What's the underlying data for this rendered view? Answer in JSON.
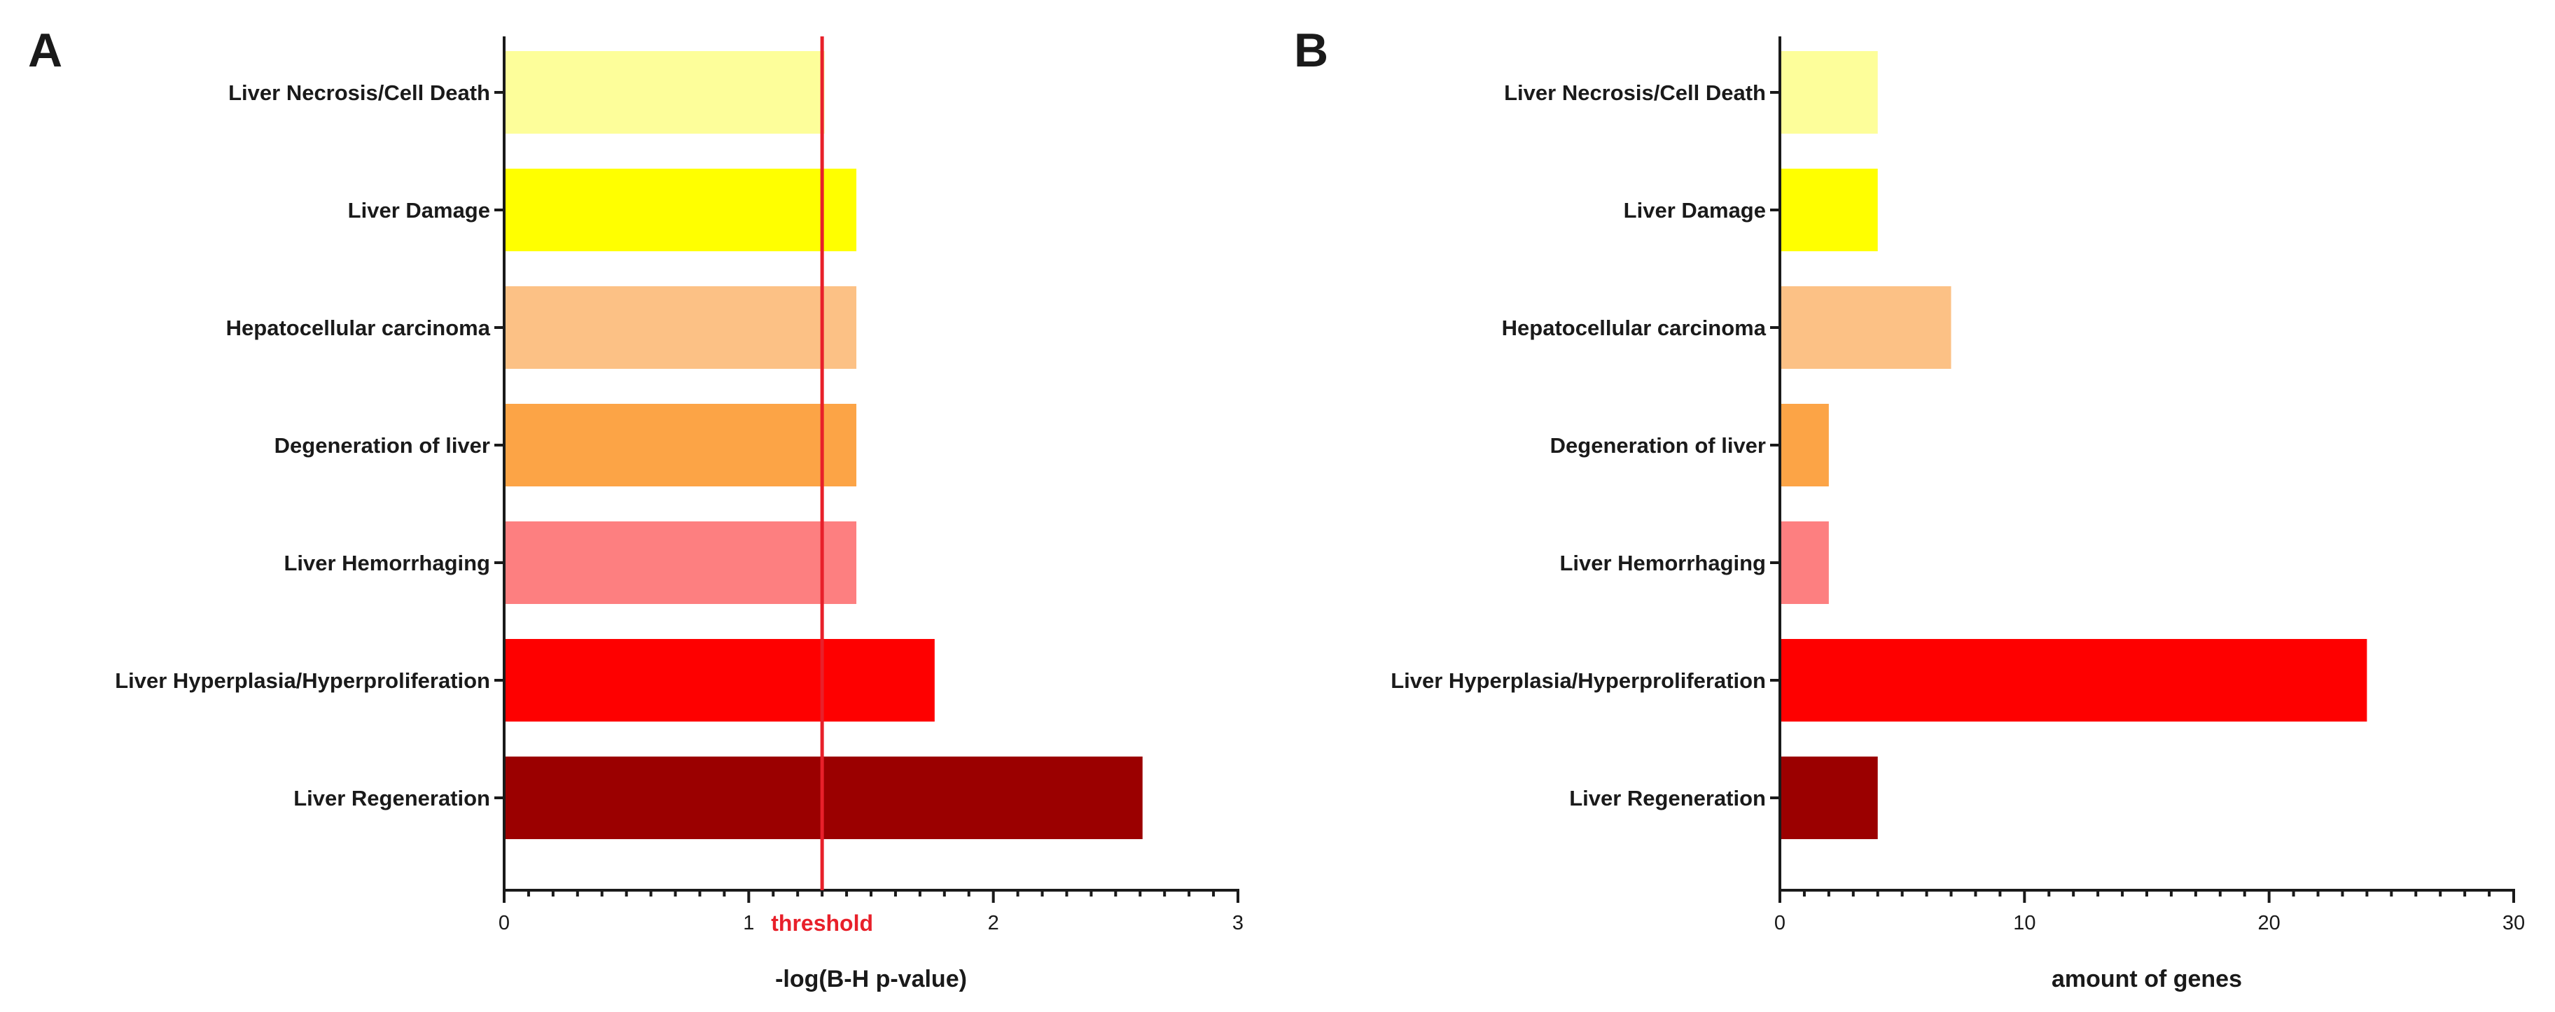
{
  "chart_data": [
    {
      "type": "bar",
      "orientation": "horizontal",
      "panel_label": "A",
      "categories": [
        "Liver Necrosis/Cell Death",
        "Liver Damage",
        "Hepatocellular carcinoma",
        "Degeneration of liver",
        "Liver Hemorrhaging",
        "Liver Hyperplasia/Hyperproliferation",
        "Liver Regeneration"
      ],
      "values": [
        1.31,
        1.44,
        1.44,
        1.44,
        1.44,
        1.76,
        2.61
      ],
      "colors": [
        "#fdfe9a",
        "#ffff00",
        "#fcc185",
        "#fca446",
        "#fd7f80",
        "#fe0000",
        "#9b0000"
      ],
      "xlabel": "-log(B-H p-value)",
      "xlim": [
        0,
        3
      ],
      "xticks": [
        0,
        1,
        2,
        3
      ],
      "xtick_labels": [
        "0",
        "1",
        "2",
        "3"
      ],
      "threshold": {
        "value": 1.3,
        "label": "threshold",
        "color": "#e8202a"
      }
    },
    {
      "type": "bar",
      "orientation": "horizontal",
      "panel_label": "B",
      "categories": [
        "Liver Necrosis/Cell Death",
        "Liver Damage",
        "Hepatocellular carcinoma",
        "Degeneration of liver",
        "Liver Hemorrhaging",
        "Liver Hyperplasia/Hyperproliferation",
        "Liver Regeneration"
      ],
      "values": [
        4,
        4,
        7,
        2,
        2,
        24,
        4
      ],
      "colors": [
        "#fdfe9a",
        "#ffff00",
        "#fcc185",
        "#fca446",
        "#fd7f80",
        "#fe0000",
        "#9b0000"
      ],
      "xlabel": "amount of genes",
      "xlim": [
        0,
        30
      ],
      "xticks": [
        0,
        10,
        20,
        30
      ],
      "xtick_labels": [
        "0",
        "10",
        "20",
        "30"
      ]
    }
  ]
}
